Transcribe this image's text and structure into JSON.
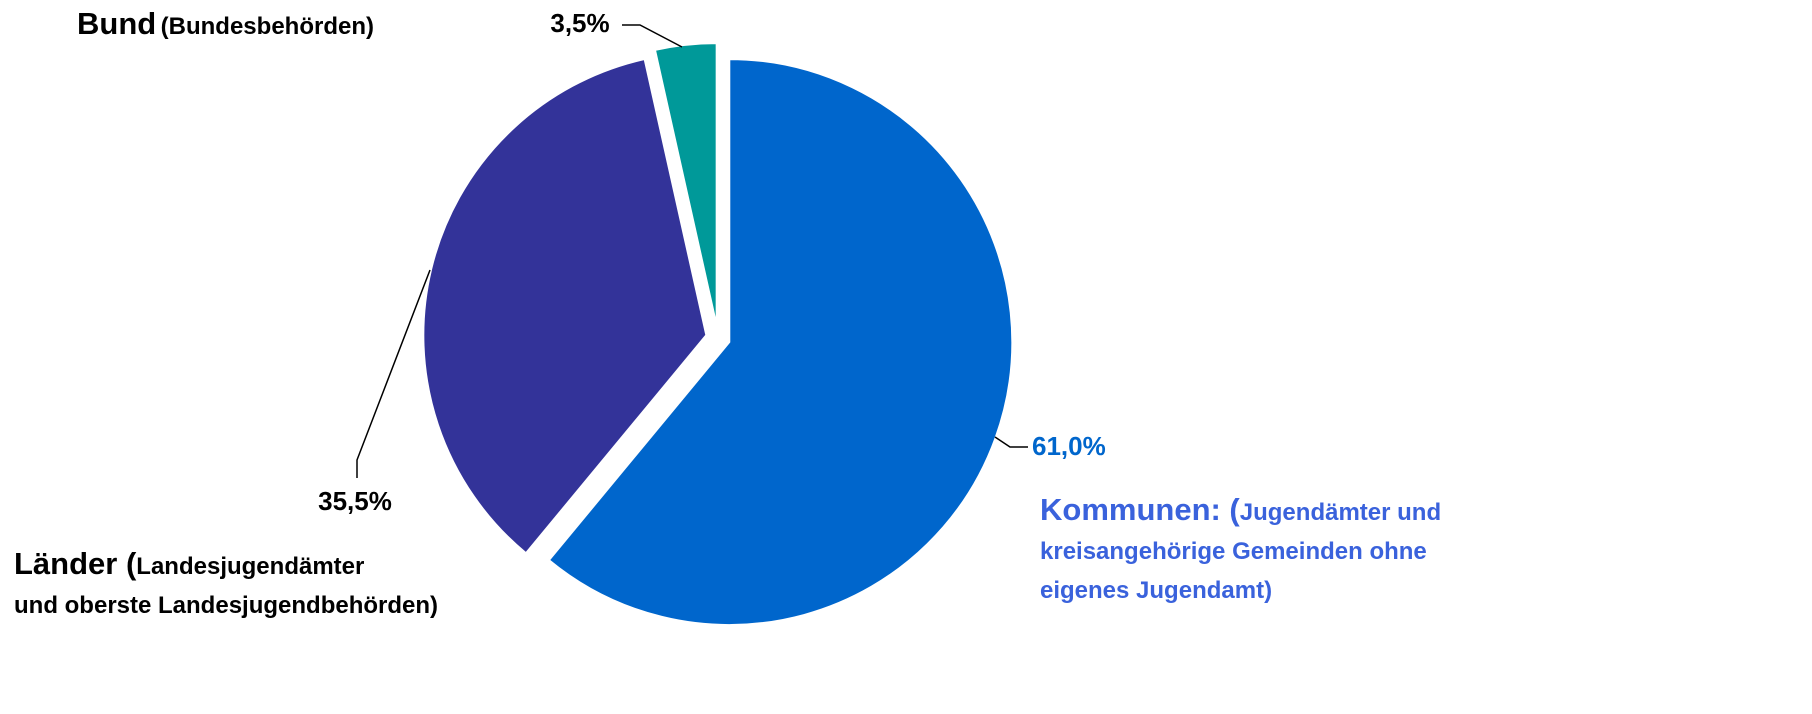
{
  "chart_data": {
    "type": "pie",
    "categories": [
      {
        "name": "Kommunen: (",
        "lines": [
          "Jugendämter und",
          "kreisangehörige Gemeinden ohne",
          "eigenes Jugendamt)"
        ]
      },
      {
        "name": "Länder (",
        "lines": [
          "Landesjugendämter",
          "und oberste Landesjugendbehörden)"
        ]
      },
      {
        "name": "Bund",
        "lines": [
          "(Bundesbehörden)"
        ]
      }
    ],
    "values": [
      61.0,
      35.5,
      3.5
    ],
    "value_labels": [
      "61,0%",
      "35,5%",
      "3,5%"
    ],
    "colors": [
      "#0066cc",
      "#333399",
      "#009999"
    ],
    "start_angle": 0,
    "direction": "clockwise"
  }
}
